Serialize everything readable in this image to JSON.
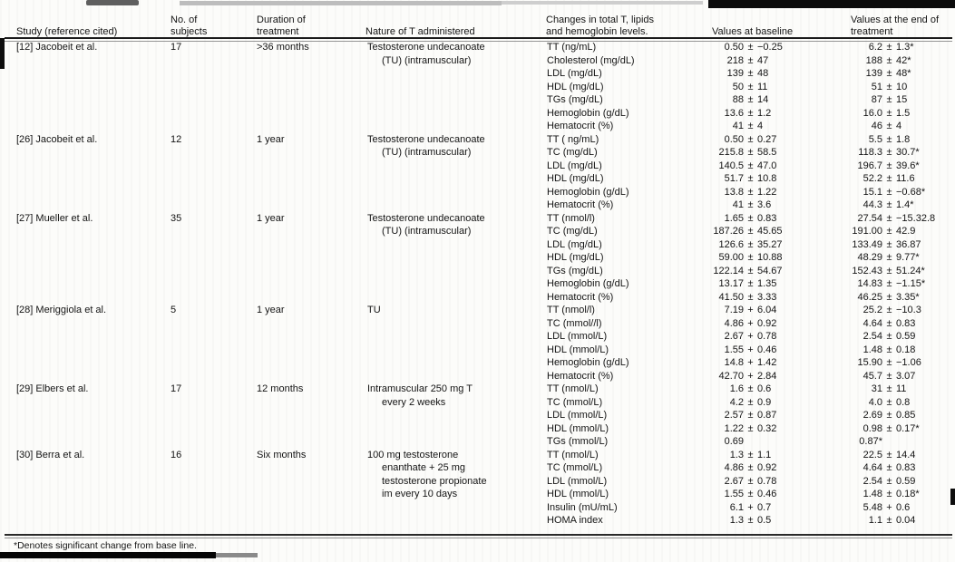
{
  "table": {
    "header": {
      "study": "Study (reference cited)",
      "subjects": "No. of\nsubjects",
      "duration": "Duration of\ntreatment",
      "nature": "Nature of T administered",
      "changes": "Changes in total T, lipids\nand hemoglobin levels.",
      "baseline": "Values at baseline",
      "end": "Values at the end of\ntreatment"
    },
    "studies": [
      {
        "study": "[12] Jacobeit et al.",
        "subjects": "17",
        "duration": ">36 months",
        "nature": "Testosterone undecanoate\n(TU) (intramuscular)",
        "rows": [
          {
            "label": "TT (ng/mL)",
            "baseline": [
              "0.50",
              "±",
              "−0.25"
            ],
            "end": [
              "6.2",
              "±",
              "1.3*"
            ]
          },
          {
            "label": "Cholesterol (mg/dL)",
            "baseline": [
              "218",
              "±",
              "47"
            ],
            "end": [
              "188",
              "±",
              "42*"
            ]
          },
          {
            "label": "LDL (mg/dL)",
            "baseline": [
              "139",
              "±",
              "48"
            ],
            "end": [
              "139",
              "±",
              "48*"
            ]
          },
          {
            "label": "HDL (mg/dL)",
            "baseline": [
              "50",
              "±",
              "11"
            ],
            "end": [
              "51",
              "±",
              "10"
            ]
          },
          {
            "label": "TGs (mg/dL)",
            "baseline": [
              "88",
              "±",
              "14"
            ],
            "end": [
              "87",
              "±",
              "15"
            ]
          },
          {
            "label": "Hemoglobin (g/dL)",
            "baseline": [
              "13.6",
              "±",
              "1.2"
            ],
            "end": [
              "16.0",
              "±",
              "1.5"
            ]
          },
          {
            "label": "Hematocrit (%)",
            "baseline": [
              "41",
              "±",
              "4"
            ],
            "end": [
              "46",
              "±",
              "4"
            ]
          }
        ]
      },
      {
        "study": "[26] Jacobeit et al.",
        "subjects": "12",
        "duration": "1 year",
        "nature": "Testosterone undecanoate\n(TU) (intramuscular)",
        "rows": [
          {
            "label": "TT ( ng/mL)",
            "baseline": [
              "0.50",
              "±",
              "0.27"
            ],
            "end": [
              "5.5",
              "±",
              "1.8"
            ]
          },
          {
            "label": "TC (mg/dL)",
            "baseline": [
              "215.8",
              "±",
              "58.5"
            ],
            "end": [
              "118.3",
              "±",
              "30.7*"
            ]
          },
          {
            "label": "LDL (mg/dL)",
            "baseline": [
              "140.5",
              "±",
              "47.0"
            ],
            "end": [
              "196.7",
              "±",
              "39.6*"
            ]
          },
          {
            "label": "HDL (mg/dL)",
            "baseline": [
              "51.7",
              "±",
              "10.8"
            ],
            "end": [
              "52.2",
              "±",
              "11.6"
            ]
          },
          {
            "label": "Hemoglobin (g/dL)",
            "baseline": [
              "13.8",
              "±",
              "1.22"
            ],
            "end": [
              "15.1",
              "±",
              "−0.68*"
            ]
          },
          {
            "label": "Hematocrit (%)",
            "baseline": [
              "41",
              "±",
              "3.6"
            ],
            "end": [
              "44.3",
              "±",
              "1.4*"
            ]
          }
        ]
      },
      {
        "study": "[27] Mueller et al.",
        "subjects": "35",
        "duration": "1 year",
        "nature": "Testosterone undecanoate\n(TU) (intramuscular)",
        "rows": [
          {
            "label": "TT (nmol/l)",
            "baseline": [
              "1.65",
              "±",
              "0.83"
            ],
            "end": [
              "27.54",
              "±",
              "−15.32.8"
            ]
          },
          {
            "label": "TC (mg/dL)",
            "baseline": [
              "187.26",
              "±",
              "45.65"
            ],
            "end": [
              "191.00",
              "±",
              "42.9"
            ]
          },
          {
            "label": "LDL (mg/dL)",
            "baseline": [
              "126.6",
              "±",
              "35.27"
            ],
            "end": [
              "133.49",
              "±",
              "36.87"
            ]
          },
          {
            "label": "HDL (mg/dL)",
            "baseline": [
              "59.00",
              "±",
              "10.88"
            ],
            "end": [
              "48.29",
              "±",
              "9.77*"
            ]
          },
          {
            "label": "TGs (mg/dL)",
            "baseline": [
              "122.14",
              "±",
              "54.67"
            ],
            "end": [
              "152.43",
              "±",
              "51.24*"
            ]
          },
          {
            "label": "Hemoglobin (g/dL)",
            "baseline": [
              "13.17",
              "±",
              "1.35"
            ],
            "end": [
              "14.83",
              "±",
              "−1.15*"
            ]
          },
          {
            "label": "Hematocrit (%)",
            "baseline": [
              "41.50",
              "±",
              "3.33"
            ],
            "end": [
              "46.25",
              "±",
              "3.35*"
            ]
          }
        ]
      },
      {
        "study": "[28] Meriggiola et al.",
        "subjects": "5",
        "duration": "1 year",
        "nature": "TU",
        "rows": [
          {
            "label": "TT (nmol/l)",
            "baseline": [
              "7.19",
              "+",
              "6.04"
            ],
            "end": [
              "25.2",
              "±",
              "−10.3"
            ]
          },
          {
            "label": "TC (mmol//l)",
            "baseline": [
              "4.86",
              "+",
              "0.92"
            ],
            "end": [
              "4.64",
              "±",
              "0.83"
            ]
          },
          {
            "label": "LDL (mmol/L)",
            "baseline": [
              "2.67",
              "+",
              "0.78"
            ],
            "end": [
              "2.54",
              "±",
              "0.59"
            ]
          },
          {
            "label": "HDL (mmol/L)",
            "baseline": [
              "1.55",
              "+",
              "0.46"
            ],
            "end": [
              "1.48",
              "±",
              "0.18"
            ]
          },
          {
            "label": "Hemoglobin (g/dL)",
            "baseline": [
              "14.8",
              "+",
              "1.42"
            ],
            "end": [
              "15.90",
              "±",
              "−1.06"
            ]
          },
          {
            "label": "Hematocrit (%)",
            "baseline": [
              "42.70",
              "+",
              "2.84"
            ],
            "end": [
              "45.7",
              "±",
              "3.07"
            ]
          }
        ]
      },
      {
        "study": "[29] Elbers et al.",
        "subjects": "17",
        "duration": "12 months",
        "nature": "Intramuscular 250 mg T\nevery 2 weeks",
        "rows": [
          {
            "label": "TT (nmol/L)",
            "baseline": [
              "1.6",
              "±",
              "0.6"
            ],
            "end": [
              "31",
              "±",
              "11"
            ]
          },
          {
            "label": "TC (mmol/L)",
            "baseline": [
              "4.2",
              "±",
              "0.9"
            ],
            "end": [
              "4.0",
              "±",
              "0.8"
            ]
          },
          {
            "label": "LDL (mmol/L)",
            "baseline": [
              "2.57",
              "±",
              "0.87"
            ],
            "end": [
              "2.69",
              "±",
              "0.85"
            ]
          },
          {
            "label": "HDL (mmol/L)",
            "baseline": [
              "1.22",
              "±",
              "0.32"
            ],
            "end": [
              "0.98",
              "±",
              "0.17*"
            ]
          },
          {
            "label": "TGs (mmol/L)",
            "baseline": [
              "0.69",
              "",
              ""
            ],
            "end": [
              "0.87*",
              "",
              ""
            ]
          }
        ]
      },
      {
        "study": "[30] Berra et al.",
        "subjects": "16",
        "duration": "Six months",
        "nature": "100 mg testosterone\nenanthate + 25 mg\ntestosterone propionate\nim every 10 days",
        "rows": [
          {
            "label": "TT (nmol/L)",
            "baseline": [
              "1.3",
              "±",
              "1.1"
            ],
            "end": [
              "22.5",
              "±",
              "14.4"
            ]
          },
          {
            "label": "TC (mmol/L)",
            "baseline": [
              "4.86",
              "±",
              "0.92"
            ],
            "end": [
              "4.64",
              "±",
              "0.83"
            ]
          },
          {
            "label": "LDL (mmol/L)",
            "baseline": [
              "2.67",
              "±",
              "0.78"
            ],
            "end": [
              "2.54",
              "±",
              "0.59"
            ]
          },
          {
            "label": "HDL (mmol/L)",
            "baseline": [
              "1.55",
              "±",
              "0.46"
            ],
            "end": [
              "1.48",
              "±",
              "0.18*"
            ]
          },
          {
            "label": "Insulin (mU/mL)",
            "baseline": [
              "6.1",
              "+",
              "0.7"
            ],
            "end": [
              "5.48",
              "+",
              "0.6"
            ]
          },
          {
            "label": "HOMA index",
            "baseline": [
              "1.3",
              "±",
              "0.5"
            ],
            "end": [
              "1.1",
              "±",
              "0.04"
            ]
          }
        ]
      }
    ],
    "footnote": "*Denotes significant change from base line."
  }
}
